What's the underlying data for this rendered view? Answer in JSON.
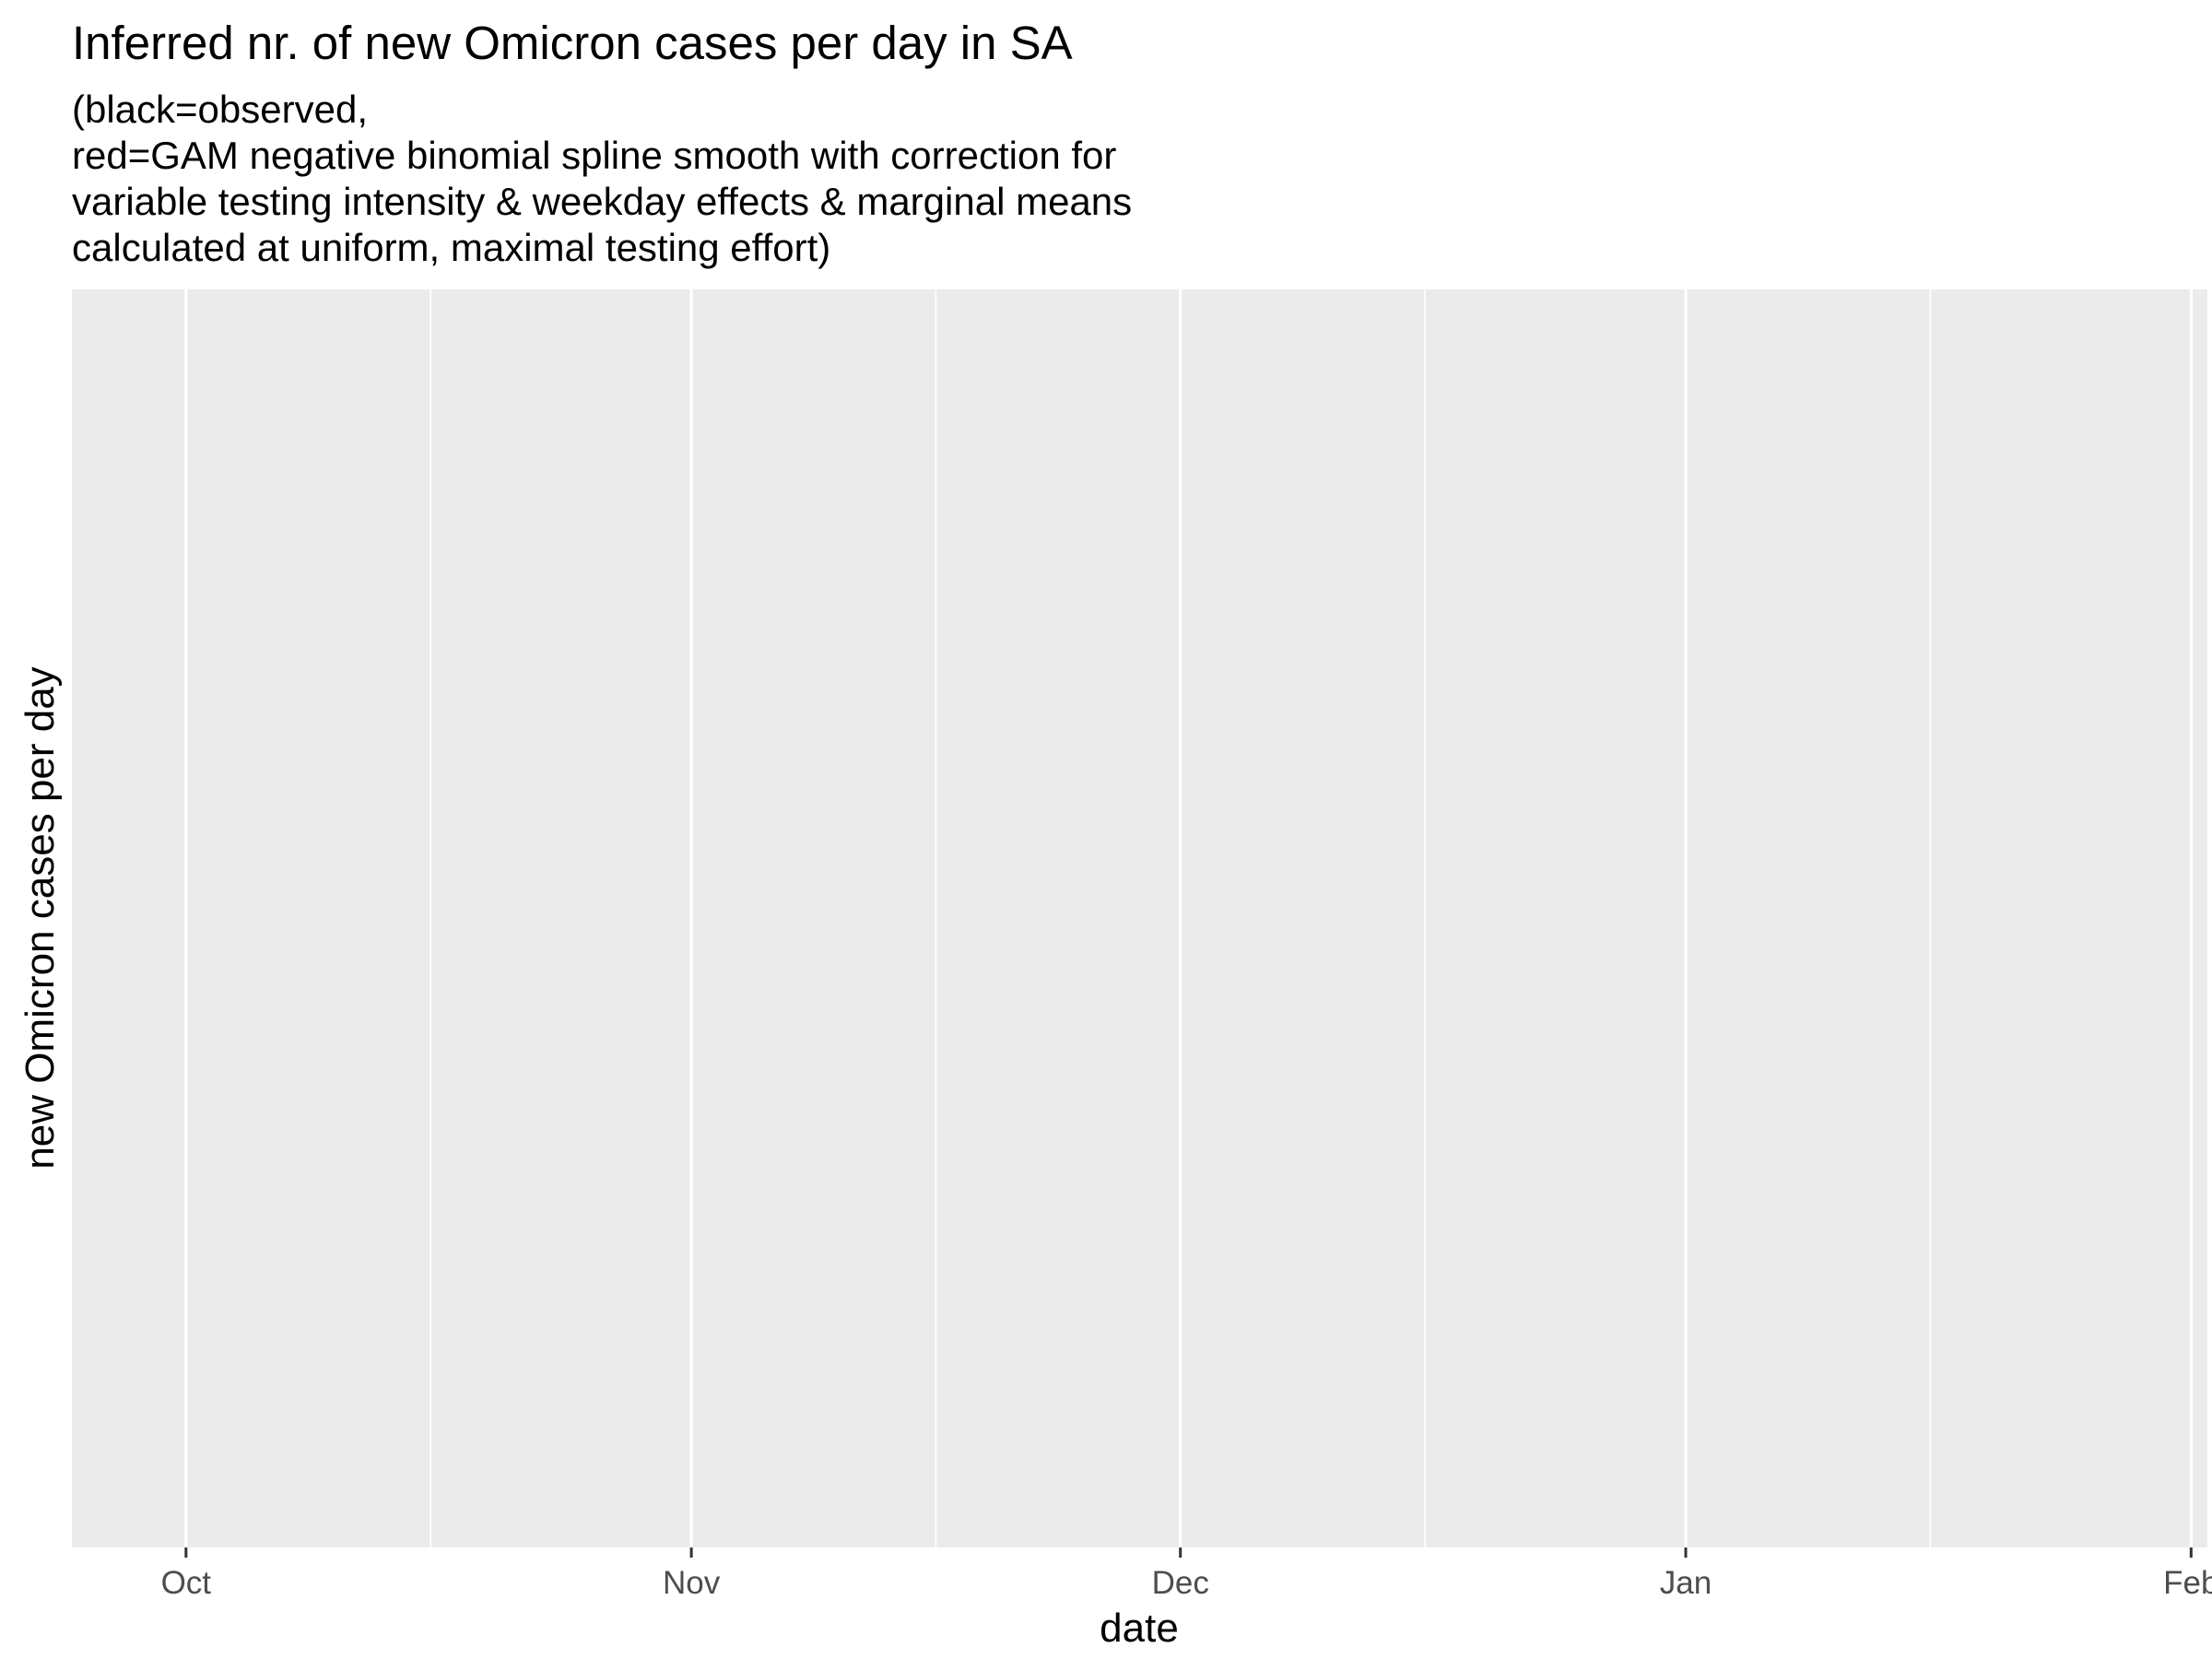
{
  "chart_data": {
    "type": "line",
    "title": "Inferred nr. of new Omicron cases per day in SA",
    "subtitle": [
      "(black=observed,",
      "red=GAM negative binomial spline smooth with correction for",
      "variable testing intensity & weekday effects & marginal means",
      "calculated at uniform, maximal testing effort)"
    ],
    "xlabel": "date",
    "ylabel": "new Omicron cases per day",
    "x_axis": {
      "type": "date",
      "range": [
        "2021-09-24",
        "2022-02-02"
      ],
      "major_ticks": [
        {
          "date": "2021-10-01",
          "label": "Oct"
        },
        {
          "date": "2021-11-01",
          "label": "Nov"
        },
        {
          "date": "2021-12-01",
          "label": "Dec"
        },
        {
          "date": "2022-01-01",
          "label": "Jan"
        },
        {
          "date": "2022-02-01",
          "label": "Feb"
        }
      ],
      "minor_ticks": [
        "2021-10-16",
        "2021-11-16",
        "2021-12-16",
        "2022-01-16"
      ]
    },
    "y_axis": {
      "ticks": []
    },
    "grid": true,
    "panel_color": "#ebebeb",
    "grid_color": "#ffffff",
    "series": []
  }
}
